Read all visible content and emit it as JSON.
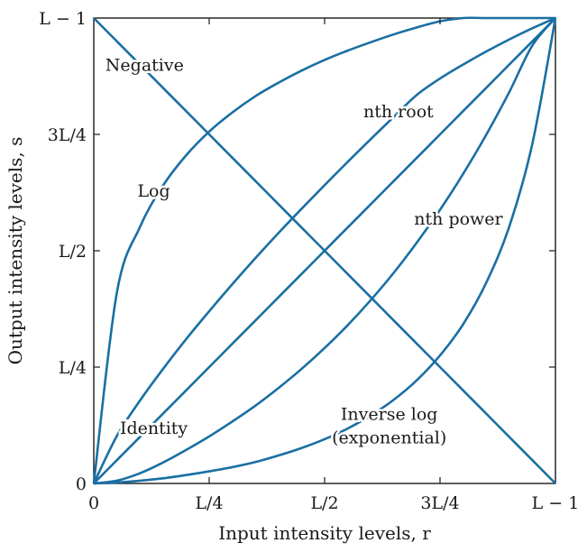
{
  "chart_data": {
    "type": "line",
    "title": "",
    "xlabel": "Input intensity levels, r",
    "ylabel": "Output intensity levels, s",
    "xlim": [
      0,
      1
    ],
    "ylim": [
      0,
      1
    ],
    "x_ticks": [
      {
        "value": 0,
        "label": "0"
      },
      {
        "value": 0.25,
        "label": "L/4"
      },
      {
        "value": 0.5,
        "label": "L/2"
      },
      {
        "value": 0.75,
        "label": "3L/4"
      },
      {
        "value": 1,
        "label": "L − 1"
      }
    ],
    "y_ticks": [
      {
        "value": 0,
        "label": "0"
      },
      {
        "value": 0.25,
        "label": "L/4"
      },
      {
        "value": 0.5,
        "label": "L/2"
      },
      {
        "value": 0.75,
        "label": "3L/4"
      },
      {
        "value": 1,
        "label": "L − 1"
      }
    ],
    "grid": false,
    "curve_color": "#1a6fa3",
    "x": [
      0,
      0.05,
      0.1,
      0.15,
      0.2,
      0.25,
      0.3,
      0.35,
      0.4,
      0.45,
      0.5,
      0.55,
      0.6,
      0.65,
      0.7,
      0.75,
      0.8,
      0.85,
      0.9,
      0.95,
      1
    ],
    "series": [
      {
        "name": "Negative",
        "values": [
          1,
          0.95,
          0.9,
          0.85,
          0.8,
          0.75,
          0.7,
          0.65,
          0.6,
          0.55,
          0.5,
          0.45,
          0.4,
          0.35,
          0.3,
          0.25,
          0.2,
          0.15,
          0.1,
          0.05,
          0
        ]
      },
      {
        "name": "Identity",
        "values": [
          0,
          0.05,
          0.1,
          0.15,
          0.2,
          0.25,
          0.3,
          0.35,
          0.4,
          0.45,
          0.5,
          0.55,
          0.6,
          0.65,
          0.7,
          0.75,
          0.8,
          0.85,
          0.9,
          0.95,
          1
        ]
      },
      {
        "name": "Log",
        "values": [
          0,
          0.41,
          0.551,
          0.64,
          0.705,
          0.756,
          0.797,
          0.832,
          0.861,
          0.887,
          0.91,
          0.93,
          0.948,
          0.965,
          0.98,
          0.993,
          1.006,
          1.018,
          1.029,
          1.039,
          1.0
        ]
      },
      {
        "name": "nth root",
        "values": [
          0,
          0.102,
          0.178,
          0.246,
          0.31,
          0.37,
          0.428,
          0.484,
          0.538,
          0.59,
          0.641,
          0.691,
          0.74,
          0.788,
          0.835,
          0.87,
          0.9,
          0.928,
          0.954,
          0.978,
          1
        ]
      },
      {
        "name": "nth power",
        "values": [
          0,
          0.006,
          0.022,
          0.045,
          0.072,
          0.101,
          0.133,
          0.167,
          0.205,
          0.246,
          0.291,
          0.34,
          0.394,
          0.453,
          0.518,
          0.588,
          0.665,
          0.749,
          0.841,
          0.941,
          1
        ]
      },
      {
        "name": "Inverse log",
        "values": [
          0,
          0.002,
          0.006,
          0.011,
          0.018,
          0.026,
          0.035,
          0.046,
          0.06,
          0.076,
          0.095,
          0.118,
          0.146,
          0.18,
          0.222,
          0.275,
          0.342,
          0.431,
          0.552,
          0.73,
          1
        ]
      }
    ],
    "annotations": [
      {
        "text": "Negative",
        "x": 0.11,
        "y": 0.9
      },
      {
        "text": "Log",
        "x": 0.13,
        "y": 0.63
      },
      {
        "text": "nth root",
        "x": 0.66,
        "y": 0.8
      },
      {
        "text": "nth power",
        "x": 0.79,
        "y": 0.57
      },
      {
        "text": "Identity",
        "x": 0.13,
        "y": 0.12
      },
      {
        "text": "Inverse log",
        "x": 0.64,
        "y": 0.15
      },
      {
        "text": "(exponential)",
        "x": 0.64,
        "y": 0.1
      }
    ]
  }
}
